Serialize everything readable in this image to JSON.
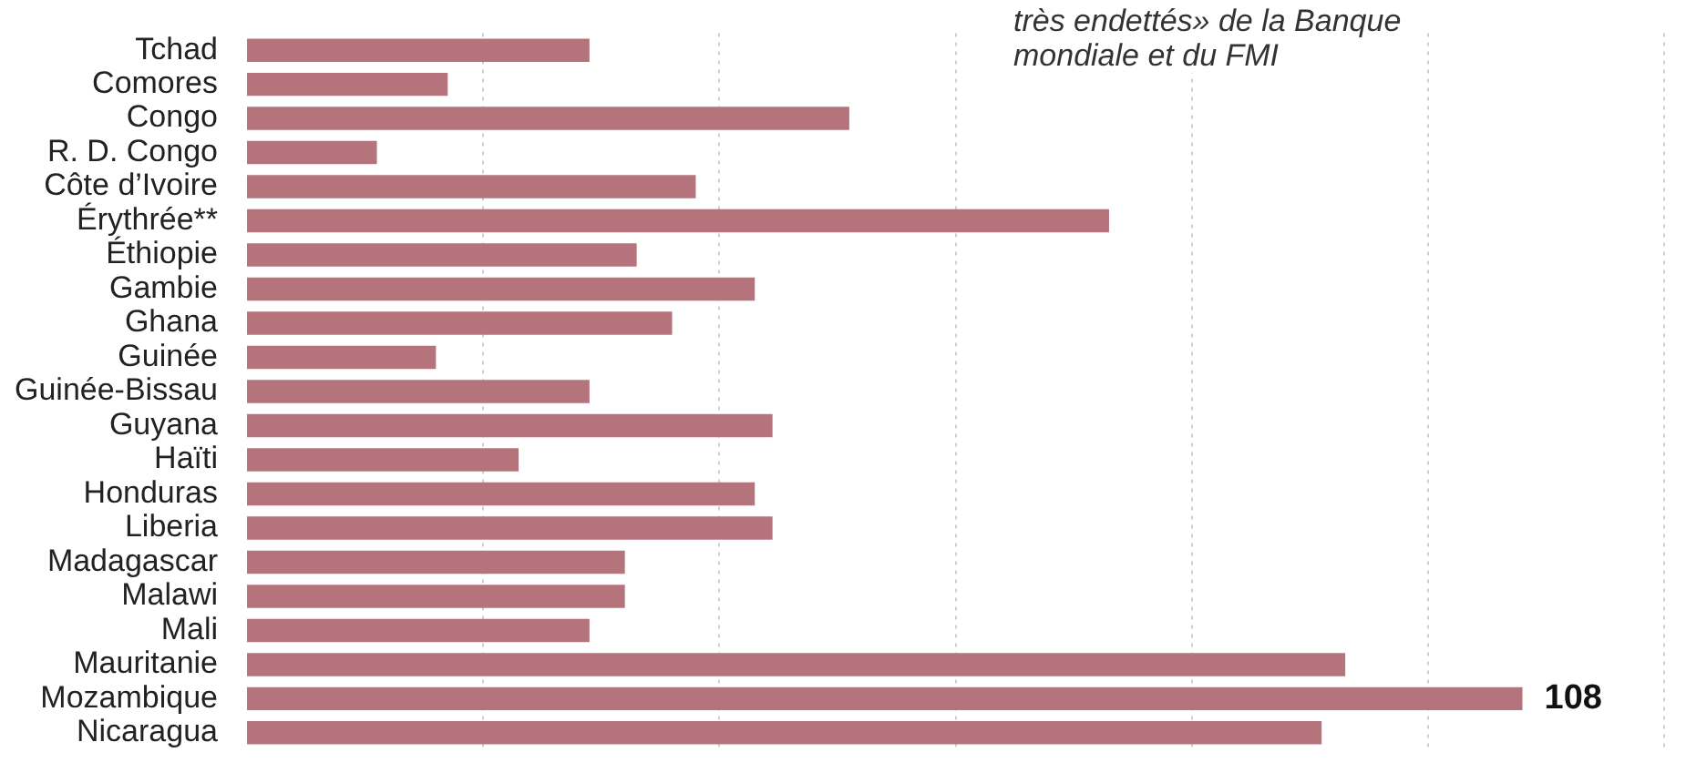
{
  "chart_data": {
    "type": "bar",
    "orientation": "horizontal",
    "categories": [
      "Tchad",
      "Comores",
      "Congo",
      "R. D. Congo",
      "Côte d’Ivoire",
      "Érythrée**",
      "Éthiopie",
      "Gambie",
      "Ghana",
      "Guinée",
      "Guinée-Bissau",
      "Guyana",
      "Haïti",
      "Honduras",
      "Liberia",
      "Madagascar",
      "Malawi",
      "Mali",
      "Mauritanie",
      "Mozambique",
      "Nicaragua"
    ],
    "values": [
      29,
      17,
      51,
      11,
      38,
      73,
      33,
      43,
      36,
      16,
      29,
      44.5,
      23,
      43,
      44.5,
      32,
      32,
      29,
      93,
      108,
      91
    ],
    "value_labels": [
      null,
      null,
      null,
      null,
      null,
      null,
      null,
      null,
      null,
      null,
      null,
      null,
      null,
      null,
      null,
      null,
      null,
      null,
      null,
      "108",
      null
    ],
    "color": "#b5747c",
    "xlim": [
      0,
      120
    ],
    "xticks": [
      {
        "value": 20,
        "label": null
      },
      {
        "value": 40,
        "label": null
      },
      {
        "value": 60,
        "label": null
      },
      {
        "value": 80,
        "label": null
      },
      {
        "value": 100,
        "label": null
      },
      {
        "value": 120,
        "label": null
      }
    ],
    "grid": "x",
    "tick_labels": "y",
    "annotations": [
      "très endettés» de la Banque\nmondiale et du FMI"
    ]
  }
}
